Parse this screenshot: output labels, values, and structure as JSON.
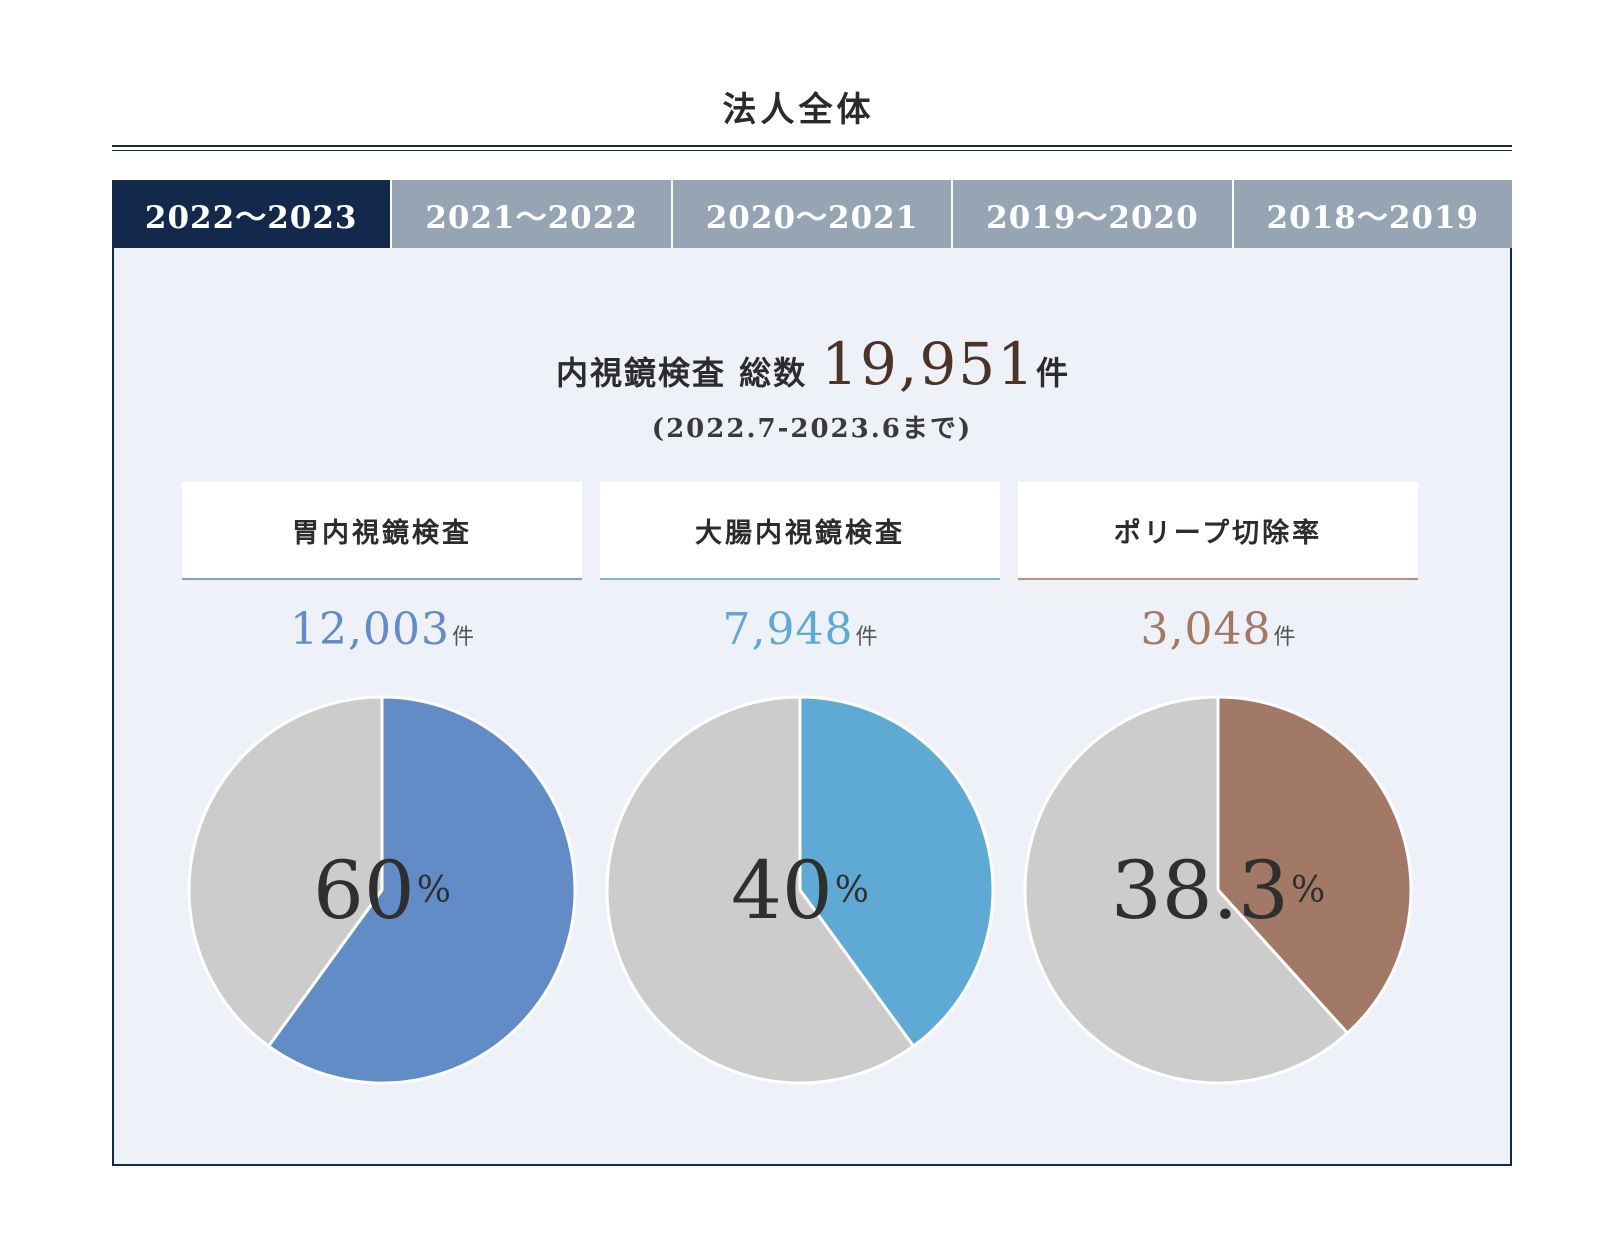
{
  "page": {
    "title": "法人全体"
  },
  "tabs": [
    {
      "label": "2022〜2023",
      "active": true
    },
    {
      "label": "2021〜2022",
      "active": false
    },
    {
      "label": "2020〜2021",
      "active": false
    },
    {
      "label": "2019〜2020",
      "active": false
    },
    {
      "label": "2018〜2019",
      "active": false
    }
  ],
  "summary": {
    "label": "内視鏡検査 総数",
    "total": "19,951",
    "unit": "件",
    "period": "(2022.7-2023.6まで)"
  },
  "cards": [
    {
      "title": "胃内視鏡検査",
      "count": "12,003",
      "count_unit": "件",
      "percent": "60",
      "percent_unit": "%",
      "color": "#628cc5",
      "line_color": "#7fa0cc"
    },
    {
      "title": "大腸内視鏡検査",
      "count": "7,948",
      "count_unit": "件",
      "percent": "40",
      "percent_unit": "%",
      "color": "#5faad5",
      "line_color": "#7dbbdc"
    },
    {
      "title": "ポリープ切除率",
      "count": "3,048",
      "count_unit": "件",
      "percent": "38.3",
      "percent_unit": "%",
      "color": "#a27867",
      "line_color": "#b89080"
    }
  ],
  "chart_data": [
    {
      "type": "pie",
      "categories": [
        "胃内視鏡検査",
        ""
      ],
      "values": [
        60,
        40
      ],
      "colors": [
        "#628cc5",
        "#cccccc"
      ]
    },
    {
      "type": "pie",
      "categories": [
        "大腸内視鏡検査",
        ""
      ],
      "values": [
        40,
        60
      ],
      "colors": [
        "#5faad5",
        "#cccccc"
      ]
    },
    {
      "type": "pie",
      "categories": [
        "ポリープ切除率",
        ""
      ],
      "values": [
        38.3,
        61.7
      ],
      "colors": [
        "#a27867",
        "#cccccc"
      ]
    }
  ]
}
